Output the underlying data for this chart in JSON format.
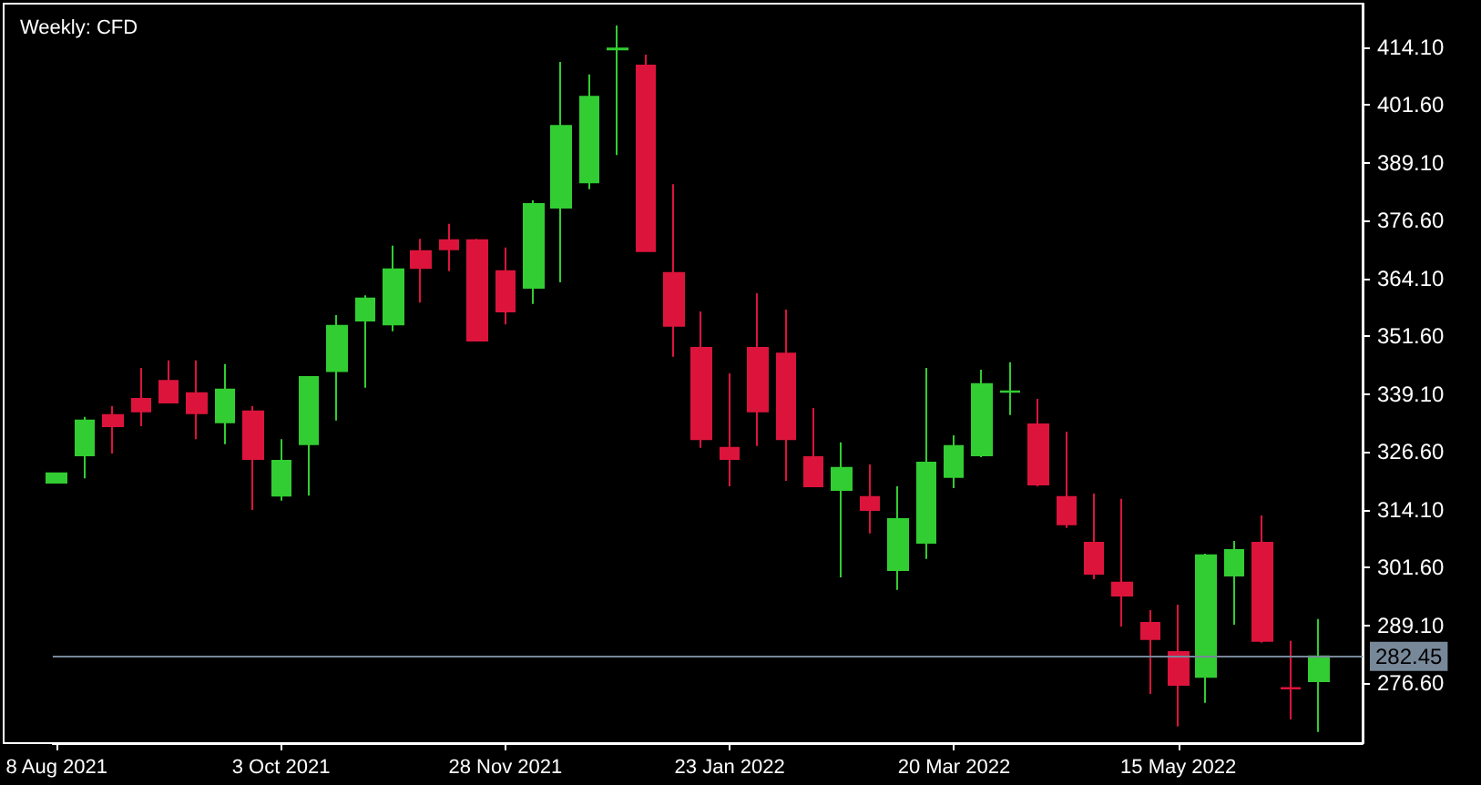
{
  "chart_data": {
    "type": "candlestick",
    "title": "Weekly: CFD",
    "x": [
      "2021-08-08",
      "2021-08-15",
      "2021-08-22",
      "2021-08-29",
      "2021-09-05",
      "2021-09-12",
      "2021-09-19",
      "2021-09-26",
      "2021-10-03",
      "2021-10-10",
      "2021-10-17",
      "2021-10-24",
      "2021-10-31",
      "2021-11-07",
      "2021-11-14",
      "2021-11-21",
      "2021-11-28",
      "2021-12-05",
      "2021-12-12",
      "2021-12-19",
      "2021-12-26",
      "2022-01-02",
      "2022-01-09",
      "2022-01-16",
      "2022-01-23",
      "2022-01-30",
      "2022-02-06",
      "2022-02-13",
      "2022-02-20",
      "2022-02-27",
      "2022-03-06",
      "2022-03-13",
      "2022-03-20",
      "2022-03-27",
      "2022-04-03",
      "2022-04-10",
      "2022-04-17",
      "2022-04-24",
      "2022-05-01",
      "2022-05-08",
      "2022-05-15",
      "2022-05-22",
      "2022-05-29",
      "2022-06-05",
      "2022-06-12",
      "2022-06-19"
    ],
    "ohlc": [
      [
        320.0,
        322.0,
        320.0,
        322.0
      ],
      [
        325.9,
        334.2,
        320.9,
        333.4
      ],
      [
        334.6,
        336.5,
        326.3,
        332.2
      ],
      [
        338.1,
        344.8,
        332.2,
        335.4
      ],
      [
        342.0,
        346.4,
        337.3,
        337.3
      ],
      [
        339.3,
        346.4,
        329.4,
        335.0
      ],
      [
        333.0,
        345.6,
        328.3,
        340.1
      ],
      [
        335.4,
        336.5,
        314.1,
        325.1
      ],
      [
        317.2,
        329.4,
        316.1,
        324.7
      ],
      [
        328.3,
        342.8,
        317.2,
        342.8
      ],
      [
        344.1,
        356.2,
        333.4,
        353.9
      ],
      [
        355.0,
        360.5,
        340.5,
        359.8
      ],
      [
        354.2,
        371.2,
        352.7,
        366.1
      ],
      [
        370.0,
        372.7,
        358.9,
        366.4
      ],
      [
        372.4,
        375.9,
        365.7,
        370.4
      ],
      [
        372.4,
        372.7,
        350.7,
        350.7
      ],
      [
        365.7,
        370.8,
        354.2,
        357.0
      ],
      [
        362.1,
        381.0,
        358.6,
        380.2
      ],
      [
        379.4,
        410.9,
        363.3,
        397.1
      ],
      [
        384.9,
        408.2,
        383.4,
        403.4
      ],
      [
        413.6,
        418.8,
        390.8,
        413.8
      ],
      [
        410.1,
        412.5,
        370.0,
        370.0
      ],
      [
        365.3,
        384.5,
        347.2,
        353.9
      ],
      [
        349.1,
        357.0,
        327.5,
        329.4
      ],
      [
        327.5,
        343.6,
        319.2,
        325.1
      ],
      [
        349.1,
        360.9,
        327.9,
        335.4
      ],
      [
        347.9,
        357.4,
        320.4,
        329.4
      ],
      [
        325.5,
        336.1,
        319.2,
        319.2
      ],
      [
        318.4,
        328.7,
        299.5,
        323.2
      ],
      [
        316.9,
        323.9,
        309.0,
        314.1
      ],
      [
        301.1,
        319.2,
        296.8,
        312.1
      ],
      [
        307.0,
        344.8,
        303.5,
        324.3
      ],
      [
        321.2,
        330.2,
        318.8,
        327.9
      ],
      [
        325.9,
        344.4,
        325.5,
        341.3
      ],
      [
        339.6,
        346.0,
        334.6,
        339.7
      ],
      [
        332.6,
        338.1,
        319.2,
        319.6
      ],
      [
        316.9,
        331.0,
        310.2,
        311.0
      ],
      [
        307.0,
        317.6,
        299.1,
        300.3
      ],
      [
        298.4,
        316.5,
        288.9,
        295.6
      ],
      [
        289.7,
        292.45,
        274.35,
        286.2
      ],
      [
        283.4,
        293.6,
        267.3,
        276.3
      ],
      [
        278.0,
        304.65,
        272.4,
        304.3
      ],
      [
        299.9,
        307.4,
        289.3,
        305.4
      ],
      [
        307.0,
        312.9,
        285.4,
        285.8
      ],
      [
        275.6,
        285.8,
        268.8,
        275.5
      ],
      [
        277.1,
        290.5,
        266.1,
        282.45
      ]
    ],
    "xlim": [
      "2021-08-07",
      "2022-06-30"
    ],
    "xticks": [
      {
        "value": "2021-08-08",
        "label": "8 Aug 2021"
      },
      {
        "value": "2021-10-03",
        "label": "3 Oct 2021"
      },
      {
        "value": "2021-11-28",
        "label": "28 Nov 2021"
      },
      {
        "value": "2022-01-23",
        "label": "23 Jan 2022"
      },
      {
        "value": "2022-03-20",
        "label": "20 Mar 2022"
      },
      {
        "value": "2022-05-15",
        "label": "15 May 2022"
      }
    ],
    "ylim": [
      263.7,
      423.5
    ],
    "yticks": [
      {
        "value": 276.6,
        "label": "276.60"
      },
      {
        "value": 289.1,
        "label": "289.10"
      },
      {
        "value": 301.6,
        "label": "301.60"
      },
      {
        "value": 314.1,
        "label": "314.10"
      },
      {
        "value": 326.6,
        "label": "326.60"
      },
      {
        "value": 339.1,
        "label": "339.10"
      },
      {
        "value": 351.6,
        "label": "351.60"
      },
      {
        "value": 364.1,
        "label": "364.10"
      },
      {
        "value": 376.6,
        "label": "376.60"
      },
      {
        "value": 389.1,
        "label": "389.10"
      },
      {
        "value": 401.6,
        "label": "401.60"
      },
      {
        "value": 414.1,
        "label": "414.10"
      }
    ],
    "ref_lines": [
      {
        "axis": "y",
        "value": 282.45,
        "label": "282.45",
        "color": "#778899"
      }
    ],
    "grid": false
  }
}
